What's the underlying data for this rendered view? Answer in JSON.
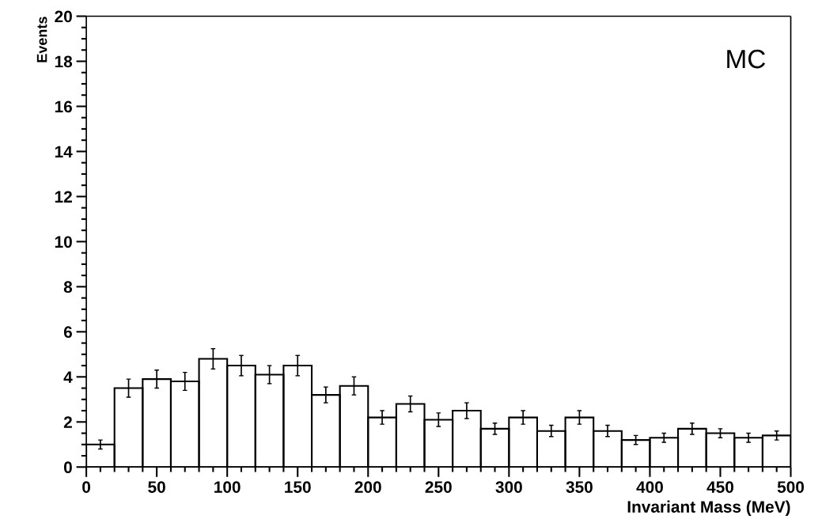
{
  "chart_data": {
    "type": "histogram",
    "xlabel": "Invariant Mass (MeV)",
    "ylabel": "Events",
    "bins": [
      0,
      20,
      40,
      60,
      80,
      100,
      120,
      140,
      160,
      180,
      200,
      220,
      240,
      260,
      280,
      300,
      320,
      340,
      360,
      380,
      400,
      420,
      440,
      460,
      480,
      500
    ],
    "values": [
      1.0,
      3.5,
      3.9,
      3.8,
      4.8,
      4.5,
      4.1,
      4.5,
      3.2,
      3.6,
      2.2,
      2.8,
      2.1,
      2.5,
      1.7,
      2.2,
      1.6,
      2.2,
      1.6,
      1.2,
      1.3,
      1.7,
      1.5,
      1.3,
      1.4
    ],
    "errors": [
      0.2,
      0.4,
      0.4,
      0.4,
      0.45,
      0.45,
      0.4,
      0.45,
      0.35,
      0.4,
      0.3,
      0.35,
      0.3,
      0.35,
      0.25,
      0.3,
      0.25,
      0.3,
      0.25,
      0.2,
      0.2,
      0.25,
      0.2,
      0.2,
      0.2
    ],
    "color": "#000000",
    "xlim": [
      0,
      500
    ],
    "xticks": [
      0,
      50,
      100,
      150,
      200,
      250,
      300,
      350,
      400,
      450,
      500
    ],
    "ylim": [
      0,
      20
    ],
    "yticks": [
      0,
      2,
      4,
      6,
      8,
      10,
      12,
      14,
      16,
      18,
      20
    ],
    "annotations": [
      "MC"
    ]
  }
}
